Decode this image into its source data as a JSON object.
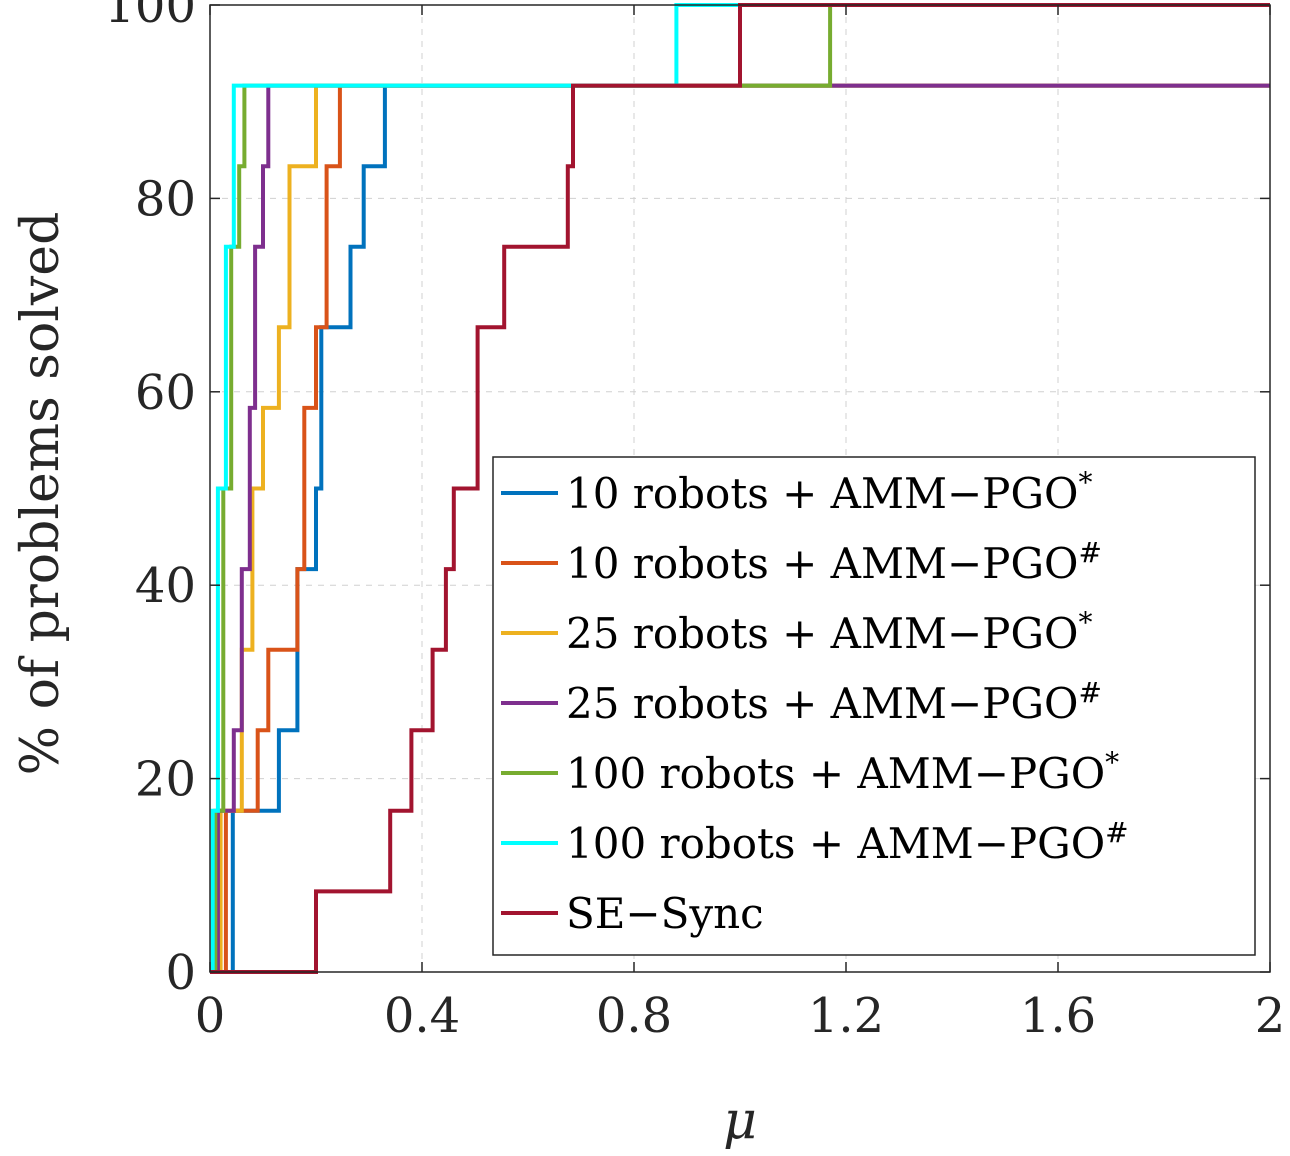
{
  "chart_data": {
    "type": "line",
    "xlabel": "μ",
    "ylabel": "% of problems solved",
    "xlim": [
      0,
      2
    ],
    "ylim": [
      0,
      100
    ],
    "xticks": [
      "0",
      "0.4",
      "0.8",
      "1.2",
      "1.6",
      "2"
    ],
    "yticks": [
      "0",
      "20",
      "40",
      "60",
      "80",
      "100"
    ],
    "grid": true,
    "legend_position": "bottom-right",
    "series": [
      {
        "name": "10 robots + AMM−PGO",
        "superscript": "*",
        "color": "#0072BD",
        "x": [
          0,
          0.043,
          0.043,
          0.13,
          0.13,
          0.165,
          0.165,
          0.2,
          0.2,
          0.21,
          0.21,
          0.265,
          0.265,
          0.29,
          0.29,
          0.33,
          0.33,
          0.38,
          0.38,
          2.0
        ],
        "y": [
          0,
          0,
          16.67,
          16.67,
          25,
          25,
          41.67,
          41.67,
          50,
          50,
          66.67,
          66.67,
          75,
          75,
          83.33,
          83.33,
          91.67,
          91.67,
          91.67,
          91.67
        ]
      },
      {
        "name": "10 robots + AMM−PGO",
        "superscript": "#",
        "color": "#D95319",
        "x": [
          0,
          0.03,
          0.03,
          0.09,
          0.09,
          0.11,
          0.11,
          0.165,
          0.165,
          0.178,
          0.178,
          0.2,
          0.2,
          0.22,
          0.22,
          0.245,
          0.245,
          2.0
        ],
        "y": [
          0,
          0,
          16.67,
          16.67,
          25,
          25,
          33.33,
          33.33,
          41.67,
          41.67,
          58.33,
          58.33,
          66.67,
          66.67,
          83.33,
          83.33,
          91.67,
          91.67
        ]
      },
      {
        "name": "25 robots + AMM−PGO",
        "superscript": "*",
        "color": "#EDB120",
        "x": [
          0,
          0.02,
          0.02,
          0.06,
          0.06,
          0.08,
          0.08,
          0.1,
          0.1,
          0.13,
          0.13,
          0.15,
          0.15,
          0.18,
          0.18,
          0.2,
          0.2,
          2.0
        ],
        "y": [
          0,
          0,
          16.67,
          16.67,
          33.33,
          33.33,
          50,
          50,
          58.33,
          58.33,
          66.67,
          66.67,
          83.33,
          83.33,
          83.33,
          83.33,
          91.67,
          91.67
        ]
      },
      {
        "name": "25 robots + AMM−PGO",
        "superscript": "#",
        "color": "#7E2F8E",
        "x": [
          0,
          0.015,
          0.015,
          0.045,
          0.045,
          0.06,
          0.06,
          0.075,
          0.075,
          0.085,
          0.085,
          0.1,
          0.1,
          0.11,
          0.11,
          2.0
        ],
        "y": [
          0,
          0,
          16.67,
          16.67,
          25,
          25,
          41.67,
          41.67,
          58.33,
          58.33,
          75,
          75,
          83.33,
          83.33,
          91.67,
          91.67
        ]
      },
      {
        "name": "100 robots + AMM−PGO",
        "superscript": "*",
        "color": "#77AC30",
        "x": [
          0,
          0.01,
          0.01,
          0.025,
          0.025,
          0.04,
          0.04,
          0.055,
          0.055,
          0.065,
          0.065,
          0.07,
          0.07,
          1.17,
          1.17,
          2.0
        ],
        "y": [
          0,
          0,
          16.67,
          16.67,
          50,
          50,
          75,
          75,
          83.33,
          83.33,
          91.67,
          91.67,
          91.67,
          91.67,
          100,
          100
        ]
      },
      {
        "name": "100 robots + AMM−PGO",
        "superscript": "#",
        "color": "#00FFFF",
        "x": [
          0,
          0.005,
          0.005,
          0.015,
          0.015,
          0.03,
          0.03,
          0.045,
          0.045,
          0.88,
          0.88,
          2.0
        ],
        "y": [
          0,
          0,
          16.67,
          16.67,
          50,
          50,
          75,
          75,
          91.67,
          91.67,
          100,
          100
        ]
      },
      {
        "name": "SE−Sync",
        "superscript": "",
        "color": "#A2142F",
        "x": [
          0,
          0.2,
          0.2,
          0.34,
          0.34,
          0.38,
          0.38,
          0.42,
          0.42,
          0.445,
          0.445,
          0.46,
          0.46,
          0.505,
          0.505,
          0.555,
          0.555,
          0.675,
          0.675,
          0.685,
          0.685,
          1.0,
          1.0,
          2.0
        ],
        "y": [
          0,
          0,
          8.33,
          8.33,
          16.67,
          16.67,
          25,
          25,
          33.33,
          33.33,
          41.67,
          41.67,
          50,
          50,
          66.67,
          66.67,
          75,
          75,
          83.33,
          83.33,
          91.67,
          91.67,
          100,
          100
        ]
      }
    ]
  }
}
